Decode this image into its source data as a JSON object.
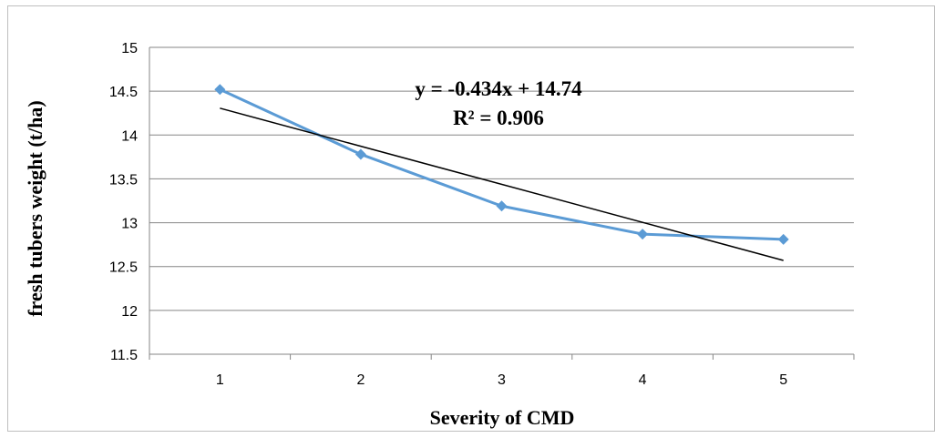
{
  "chart_data": {
    "type": "line",
    "title": "",
    "xlabel": "Severity of CMD",
    "ylabel": "fresh tubers weight  (t/ha)",
    "x": [
      1,
      2,
      3,
      4,
      5
    ],
    "x_tick_labels": [
      "1",
      "2",
      "3",
      "4",
      "5"
    ],
    "ylim": [
      11.5,
      15
    ],
    "y_ticks": [
      11.5,
      12,
      12.5,
      13,
      13.5,
      14,
      14.5,
      15
    ],
    "y_tick_labels": [
      "11.5",
      "12",
      "12.5",
      "13",
      "13.5",
      "14",
      "14.5",
      "15"
    ],
    "grid": "horizontal",
    "series": [
      {
        "values": [
          14.52,
          13.78,
          13.19,
          12.87,
          12.81
        ],
        "color": "#5b9bd5",
        "marker": "diamond"
      }
    ],
    "trendline": {
      "type": "linear",
      "slope": -0.434,
      "intercept": 14.74,
      "color": "#000000",
      "equation_label": "y = -0.434x + 14.74",
      "r2_label": "R² = 0.906"
    }
  }
}
